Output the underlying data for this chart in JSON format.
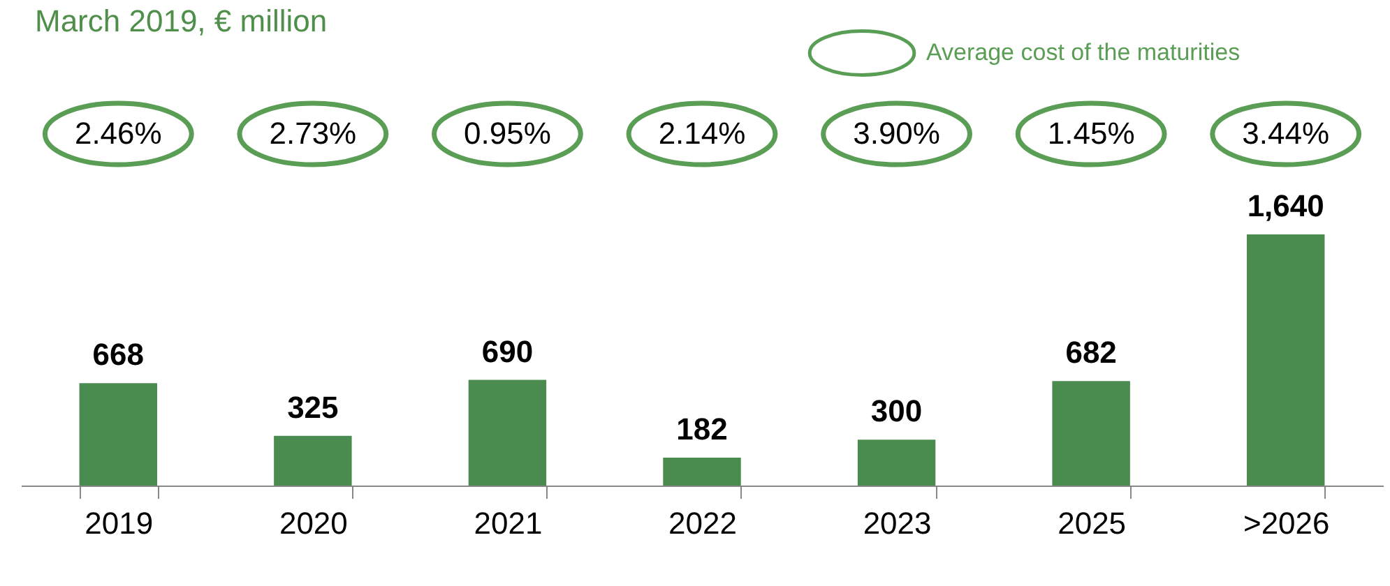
{
  "chart_data": {
    "type": "bar",
    "title": "March 2019, € million",
    "categories": [
      "2019",
      "2020",
      "2021",
      "2022",
      "2023",
      "2025",
      ">2026"
    ],
    "values": [
      668,
      325,
      690,
      182,
      300,
      682,
      1640
    ],
    "value_labels": [
      "668",
      "325",
      "690",
      "182",
      "300",
      "682",
      "1,640"
    ],
    "color": "#4a8b4f",
    "annotations": [
      "Average cost of the maturities",
      "2.46%",
      "2.73%",
      "0.95%",
      "2.14%",
      "3.90%",
      "1.45%",
      "3.44%"
    ],
    "grid": false
  }
}
